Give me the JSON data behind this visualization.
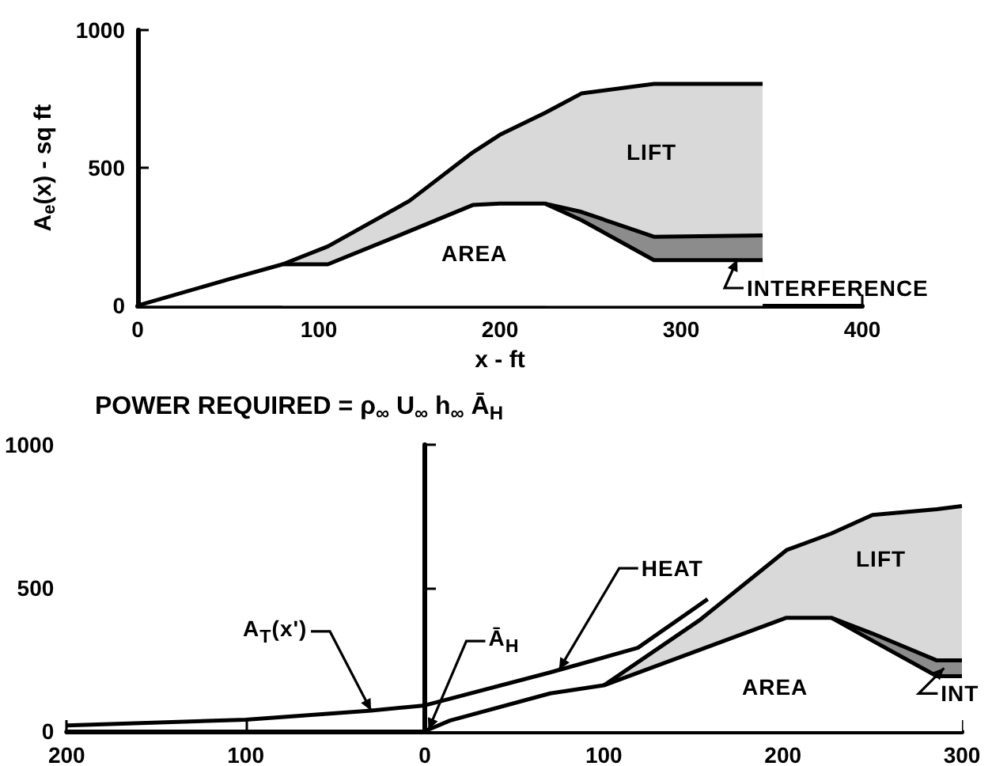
{
  "chart_data": [
    {
      "type": "area",
      "xlabel": "x - ft",
      "ylabel": "A$_{e}$(x) - sq ft",
      "x": [
        0,
        50,
        80,
        105,
        150,
        185,
        200,
        225,
        245,
        285,
        345
      ],
      "series": [
        {
          "color": "#ffffff",
          "values": [
            0,
            95,
            150,
            150,
            270,
            365,
            370,
            370,
            310,
            165,
            165
          ]
        },
        {
          "color": "#8c8c8c",
          "values": [
            null,
            null,
            null,
            null,
            null,
            null,
            null,
            370,
            340,
            250,
            255
          ]
        },
        {
          "color": "#d9d9d9",
          "values": [
            null,
            null,
            150,
            215,
            380,
            556,
            620,
            700,
            770,
            805,
            805
          ]
        }
      ],
      "xlim": [
        0,
        400
      ],
      "xticks": [
        0,
        100,
        200,
        300,
        400
      ],
      "ylim": [
        0,
        1000
      ],
      "yticks": [
        0,
        500,
        1000
      ],
      "annotations": [
        "LIFT",
        "AREA",
        "INTERFERENCE"
      ]
    },
    {
      "type": "area",
      "title": "POWER REQUIRED = ρ$_{∞}$ U$_{∞}$ h$_{∞}$ Ā$_{H}$",
      "x": [
        0,
        14,
        70,
        100,
        154,
        202,
        227,
        250,
        286,
        300
      ],
      "series": [
        {
          "color": "#ffffff",
          "values": [
            0,
            37,
            132,
            160,
            285,
            396,
            396,
            316,
            192,
            192
          ]
        },
        {
          "color": "#8c8c8c",
          "values": [
            null,
            null,
            null,
            null,
            null,
            null,
            396,
            341,
            247,
            247
          ]
        },
        {
          "color": "#d9d9d9",
          "values": [
            null,
            null,
            null,
            160,
            390,
            632,
            690,
            755,
            775,
            786
          ]
        },
        {
          "type": "line",
          "color": "#000000",
          "x": [
            -200,
            -100,
            -30,
            0,
            70,
            119,
            158
          ],
          "values": [
            20,
            40,
            72,
            90,
            205,
            291,
            461
          ]
        }
      ],
      "xlim": [
        -200,
        300
      ],
      "xticks": [
        {
          "value": -200,
          "label": "200"
        },
        {
          "value": -100,
          "label": "100"
        },
        0,
        100,
        200,
        300
      ],
      "ylim": [
        0,
        1000
      ],
      "yticks": [
        0,
        500,
        1000
      ],
      "ref_lines": [
        {
          "axis": "x",
          "value": 0,
          "color": "#000000"
        }
      ],
      "annotations": [
        {
          "text": "HEAT",
          "x": 75,
          "y": 215
        },
        {
          "text": "A$_{T}$(x')",
          "x": -30,
          "y": 72
        },
        {
          "text": "Ā$_{H}$",
          "x": 2,
          "y": 5
        },
        "LIFT",
        "AREA",
        {
          "text": "INT",
          "x": 290,
          "y": 220
        }
      ]
    }
  ]
}
